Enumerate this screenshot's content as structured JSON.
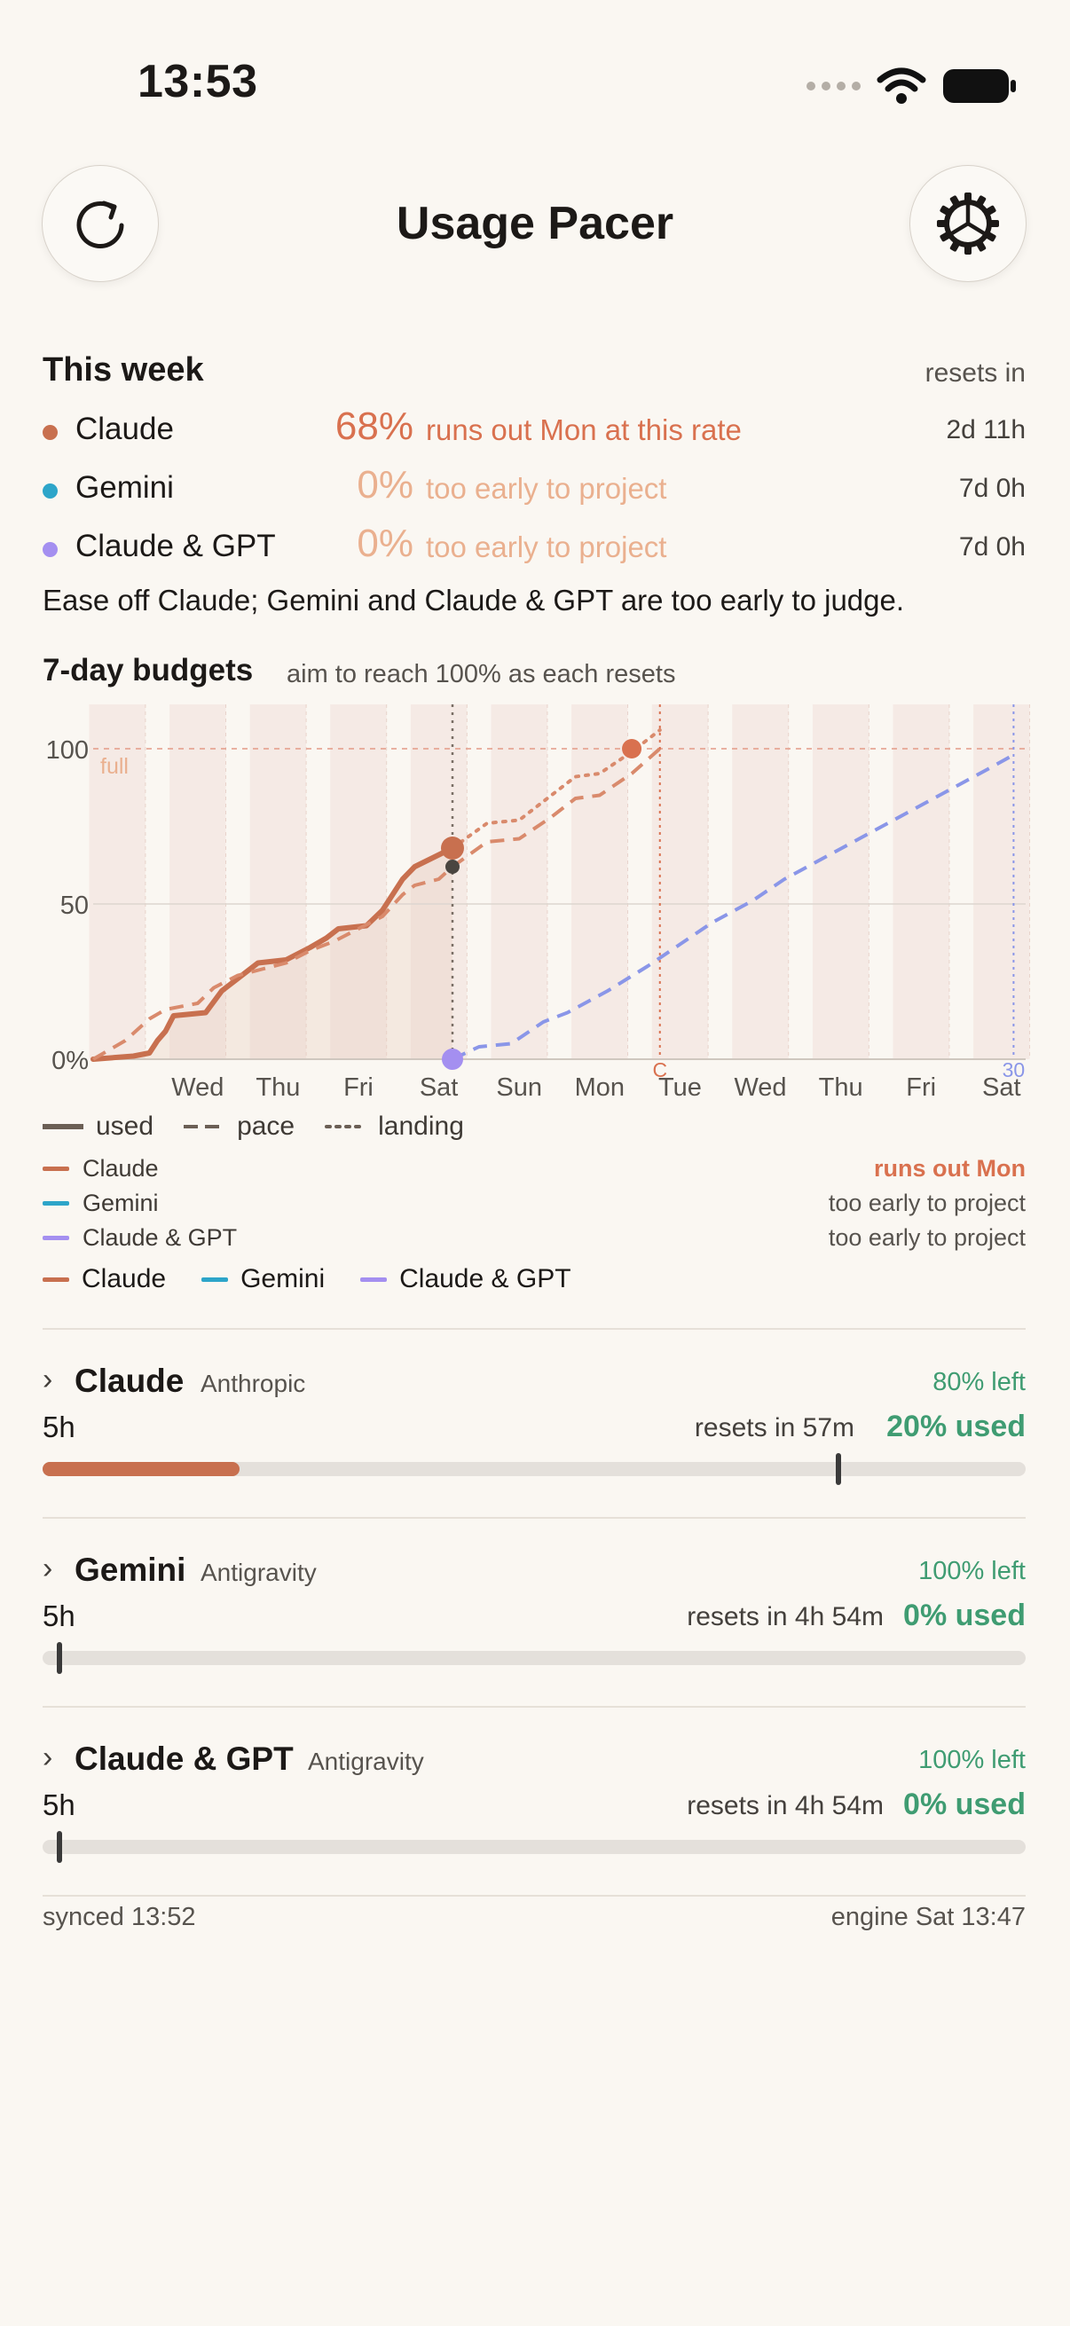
{
  "status_bar": {
    "time": "13:53"
  },
  "header": {
    "title": "Usage Pacer",
    "refresh_icon": "refresh-icon",
    "settings_icon": "gear-icon"
  },
  "this_week": {
    "heading": "This week",
    "resets_in_label": "resets in",
    "rows": [
      {
        "name": "Claude",
        "percent": "68%",
        "note": "runs out Mon at this rate",
        "resets": "2d 11h",
        "color": "#c8704f",
        "note_color": "#d9714f"
      },
      {
        "name": "Gemini",
        "percent": "0%",
        "note": "too early to project",
        "resets": "7d 0h",
        "color": "#2da5c9",
        "note_color": "#eab08f"
      },
      {
        "name": "Claude & GPT",
        "percent": "0%",
        "note": "too early to project",
        "resets": "7d 0h",
        "color": "#a48ff0",
        "note_color": "#eab08f"
      }
    ],
    "advice": "Ease off Claude; Gemini and Claude & GPT are too early to judge."
  },
  "budgets": {
    "heading": "7-day budgets",
    "subheading": "aim to reach 100% as each resets"
  },
  "chart_data": {
    "type": "line",
    "y_ticks": [
      "0%",
      "50",
      "100"
    ],
    "ylim": [
      0,
      100
    ],
    "full_label": "full",
    "x_tick_labels": [
      "Wed",
      "Thu",
      "Fri",
      "Sat",
      "Sun",
      "Mon",
      "Tue",
      "Wed",
      "Thu",
      "Fri",
      "Sat"
    ],
    "x_tick_positions_days": [
      1,
      2,
      3,
      4,
      5,
      6,
      7,
      8,
      9,
      10,
      11
    ],
    "xlim_days": [
      -0.3,
      11.3
    ],
    "now_day": 4.17,
    "reset_markers": [
      {
        "label": "C",
        "day": 6.75,
        "color": "#d9714f"
      },
      {
        "label": "30",
        "day": 11.15,
        "color": "#8a96e8"
      }
    ],
    "series": [
      {
        "name": "Claude",
        "color": "#c8704f",
        "style": "used",
        "points": [
          [
            -0.3,
            0
          ],
          [
            0.2,
            1
          ],
          [
            0.4,
            2
          ],
          [
            0.5,
            6
          ],
          [
            0.6,
            9
          ],
          [
            0.7,
            14
          ],
          [
            1.1,
            15
          ],
          [
            1.3,
            22
          ],
          [
            1.45,
            25
          ],
          [
            1.6,
            28
          ],
          [
            1.75,
            31
          ],
          [
            2.1,
            32
          ],
          [
            2.4,
            36
          ],
          [
            2.6,
            39
          ],
          [
            2.75,
            42
          ],
          [
            3.1,
            43
          ],
          [
            3.3,
            48
          ],
          [
            3.45,
            54
          ],
          [
            3.55,
            58
          ],
          [
            3.7,
            62
          ],
          [
            4.17,
            68
          ]
        ]
      },
      {
        "name": "Claude pace",
        "color": "#d98a6c",
        "style": "pace",
        "points": [
          [
            -0.3,
            0
          ],
          [
            0.1,
            6
          ],
          [
            0.4,
            13
          ],
          [
            0.6,
            16
          ],
          [
            1.0,
            18
          ],
          [
            1.2,
            23
          ],
          [
            1.5,
            27
          ],
          [
            1.8,
            29
          ],
          [
            2.1,
            31
          ],
          [
            2.4,
            35
          ],
          [
            2.7,
            38
          ],
          [
            3.0,
            42
          ],
          [
            3.3,
            46
          ],
          [
            3.55,
            53
          ],
          [
            3.7,
            56
          ],
          [
            4.0,
            58
          ],
          [
            4.17,
            62
          ],
          [
            4.6,
            70
          ],
          [
            5.0,
            71
          ],
          [
            5.4,
            78
          ],
          [
            5.7,
            84
          ],
          [
            6.0,
            85
          ],
          [
            6.4,
            92
          ],
          [
            6.75,
            100
          ]
        ]
      },
      {
        "name": "Claude landing",
        "color": "#d98a6c",
        "style": "landing",
        "points": [
          [
            4.17,
            68
          ],
          [
            4.6,
            76
          ],
          [
            5.0,
            77
          ],
          [
            5.4,
            85
          ],
          [
            5.7,
            91
          ],
          [
            6.0,
            92
          ],
          [
            6.4,
            99
          ],
          [
            6.75,
            106
          ]
        ]
      },
      {
        "name": "Claude & GPT pace",
        "color": "#8a96e8",
        "style": "pace",
        "points": [
          [
            4.17,
            0
          ],
          [
            4.5,
            4
          ],
          [
            4.9,
            5
          ],
          [
            5.3,
            12
          ],
          [
            5.6,
            15
          ],
          [
            6.1,
            22
          ],
          [
            6.6,
            30
          ],
          [
            7.0,
            37
          ],
          [
            7.4,
            44
          ],
          [
            7.9,
            51
          ],
          [
            8.3,
            58
          ],
          [
            8.8,
            65
          ],
          [
            9.3,
            72
          ],
          [
            9.8,
            79
          ],
          [
            10.3,
            86
          ],
          [
            10.8,
            93
          ],
          [
            11.15,
            98
          ]
        ]
      }
    ],
    "markers": [
      {
        "day": 4.17,
        "value": 68,
        "color": "#c8704f",
        "r": 13
      },
      {
        "day": 4.17,
        "value": 62,
        "color": "#4a4540",
        "r": 8
      },
      {
        "day": 6.4,
        "value": 100,
        "color": "#d9714f",
        "r": 11
      },
      {
        "day": 4.17,
        "value": 0,
        "color": "#a48ff0",
        "r": 12
      }
    ]
  },
  "legend_styles": [
    {
      "label": "used",
      "style": "solid"
    },
    {
      "label": "pace",
      "style": "dashed"
    },
    {
      "label": "landing",
      "style": "dotted"
    }
  ],
  "series_legend": [
    {
      "name": "Claude",
      "status": "runs out Mon",
      "color": "#c8704f",
      "status_color": "#d9714f"
    },
    {
      "name": "Gemini",
      "status": "too early to project",
      "color": "#2da5c9",
      "status_color": "#57534e"
    },
    {
      "name": "Claude & GPT",
      "status": "too early to project",
      "color": "#a48ff0",
      "status_color": "#57534e"
    }
  ],
  "series_legend_compact": [
    {
      "name": "Claude",
      "color": "#c8704f"
    },
    {
      "name": "Gemini",
      "color": "#2da5c9"
    },
    {
      "name": "Claude & GPT",
      "color": "#a48ff0"
    }
  ],
  "providers": [
    {
      "name": "Claude",
      "vendor": "Anthropic",
      "left": "80% left",
      "window": "5h",
      "resets": "resets in 57m",
      "used": "20% used",
      "used_fraction": 0.2,
      "marker_fraction": 0.81
    },
    {
      "name": "Gemini",
      "vendor": "Antigravity",
      "left": "100% left",
      "window": "5h",
      "resets": "resets in 4h 54m",
      "used": "0% used",
      "used_fraction": 0.0,
      "marker_fraction": 0.017
    },
    {
      "name": "Claude & GPT",
      "vendor": "Antigravity",
      "left": "100% left",
      "window": "5h",
      "resets": "resets in 4h 54m",
      "used": "0% used",
      "used_fraction": 0.0,
      "marker_fraction": 0.017
    }
  ],
  "footer": {
    "synced": "synced 13:52",
    "engine": "engine Sat 13:47"
  }
}
